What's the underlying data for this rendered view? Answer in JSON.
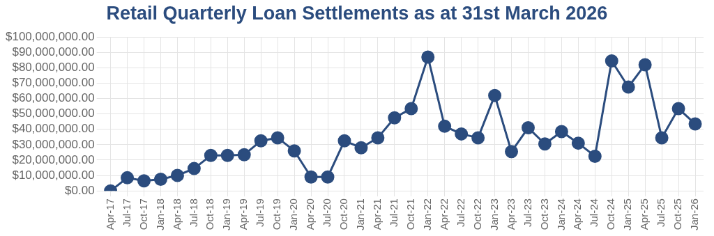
{
  "chart_data": {
    "type": "line",
    "title": "Retail Quarterly Loan Settlements as at 31st March 2026",
    "categories": [
      "Apr-17",
      "Jul-17",
      "Oct-17",
      "Jan-18",
      "Apr-18",
      "Jul-18",
      "Oct-18",
      "Jan-19",
      "Apr-19",
      "Jul-19",
      "Oct-19",
      "Jan-20",
      "Apr-20",
      "Jul-20",
      "Oct-20",
      "Jan-21",
      "Apr-21",
      "Jul-21",
      "Oct-21",
      "Jan-22",
      "Apr-22",
      "Jul-22",
      "Oct-22",
      "Jan-23",
      "Apr-23",
      "Jul-23",
      "Oct-23",
      "Jan-24",
      "Apr-24",
      "Jul-24",
      "Oct-24",
      "Jan-25",
      "Apr-25",
      "Jul-25",
      "Oct-25",
      "Jan-26"
    ],
    "series": [
      {
        "color": "#2b4c7e",
        "values": [
          0,
          8500000,
          6500000,
          7500000,
          10000000,
          14500000,
          23000000,
          23000000,
          23500000,
          32500000,
          34500000,
          26000000,
          9000000,
          9000000,
          32500000,
          28000000,
          34500000,
          47500000,
          53500000,
          87000000,
          42000000,
          37000000,
          34500000,
          62000000,
          25500000,
          41000000,
          30500000,
          38500000,
          31000000,
          22500000,
          84500000,
          67500000,
          82000000,
          34500000,
          53500000,
          43500000
        ]
      }
    ],
    "ylim": [
      0,
      100000000
    ],
    "yticks": [
      {
        "value": 0,
        "label": "$0.00"
      },
      {
        "value": 10000000,
        "label": "$10,000,000.00"
      },
      {
        "value": 20000000,
        "label": "$20,000,000.00"
      },
      {
        "value": 30000000,
        "label": "$30,000,000.00"
      },
      {
        "value": 40000000,
        "label": "$40,000,000.00"
      },
      {
        "value": 50000000,
        "label": "$50,000,000.00"
      },
      {
        "value": 60000000,
        "label": "$60,000,000.00"
      },
      {
        "value": 70000000,
        "label": "$70,000,000.00"
      },
      {
        "value": 80000000,
        "label": "$80,000,000.00"
      },
      {
        "value": 90000000,
        "label": "$90,000,000.00"
      },
      {
        "value": 100000000,
        "label": "$100,000,000.00"
      }
    ],
    "grid": true,
    "legend": false,
    "marker": "circle",
    "line_style": "solid"
  }
}
